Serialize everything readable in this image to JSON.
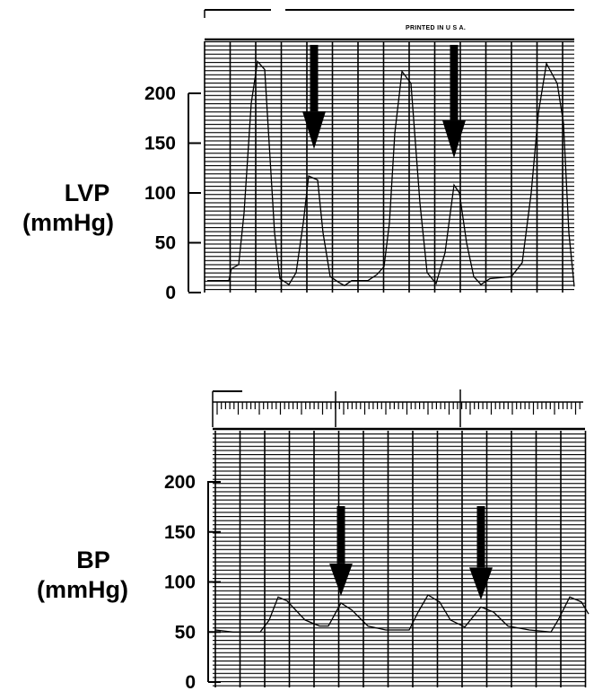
{
  "chart_data": [
    {
      "type": "line",
      "ylabel": [
        "LVP",
        "(mmHg)"
      ],
      "yticks": [
        0,
        50,
        100,
        150,
        200
      ],
      "ylim": [
        0,
        240
      ],
      "paper_header_text": "PRINTED IN U S A.",
      "arrows": [
        {
          "beat": 2,
          "peak_value": 117
        },
        {
          "beat": 4,
          "peak_value": 108
        }
      ],
      "beats": [
        {
          "beat": 1,
          "type": "normal",
          "peak": 232,
          "end_diastolic": 26
        },
        {
          "beat": 2,
          "type": "marked",
          "peak": 117
        },
        {
          "beat": 3,
          "type": "normal",
          "peak": 222,
          "end_diastolic": 26
        },
        {
          "beat": 4,
          "type": "marked",
          "peak": 108
        },
        {
          "beat": 5,
          "type": "normal",
          "peak": 230,
          "end_diastolic": 28
        }
      ],
      "grid": true
    },
    {
      "type": "line",
      "ylabel": [
        "BP",
        "(mmHg)"
      ],
      "yticks": [
        0,
        50,
        100,
        150,
        200
      ],
      "ylim": [
        0,
        240
      ],
      "arrows": [
        {
          "beat": 2,
          "peak_value": 79
        },
        {
          "beat": 4,
          "peak_value": 75
        }
      ],
      "beats": [
        {
          "beat": 1,
          "type": "normal",
          "peak": 85,
          "diastolic": 50
        },
        {
          "beat": 2,
          "type": "marked",
          "peak": 79,
          "diastolic": 55
        },
        {
          "beat": 3,
          "type": "normal",
          "peak": 87,
          "diastolic": 52
        },
        {
          "beat": 4,
          "type": "marked",
          "peak": 75,
          "diastolic": 55
        },
        {
          "beat": 5,
          "type": "normal",
          "peak": 85,
          "diastolic": 50
        }
      ],
      "grid": true
    }
  ]
}
